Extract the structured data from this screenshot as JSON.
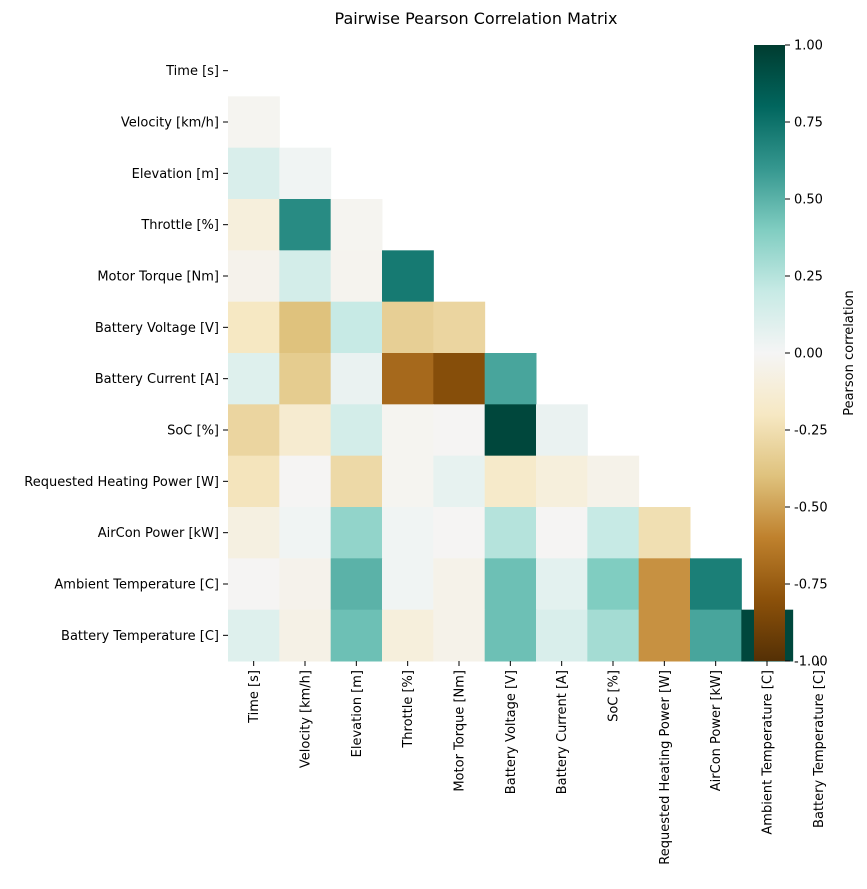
{
  "chart_data": {
    "type": "heatmap",
    "title": "Pairwise Pearson Correlation Matrix",
    "variables": [
      "Time [s]",
      "Velocity [km/h]",
      "Elevation [m]",
      "Throttle [%]",
      "Motor Torque [Nm]",
      "Battery Voltage [V]",
      "Battery Current [A]",
      "SoC [%]",
      "Requested Heating Power [W]",
      "AirCon Power [kW]",
      "Ambient Temperature [C]",
      "Battery Temperature [C]"
    ],
    "mask": "upper triangle including diagonal",
    "values": [
      [],
      [
        -0.02
      ],
      [
        0.12,
        0.02
      ],
      [
        -0.1,
        0.65,
        -0.02
      ],
      [
        -0.04,
        0.15,
        -0.03,
        0.72
      ],
      [
        -0.2,
        -0.4,
        0.2,
        -0.33,
        -0.3
      ],
      [
        0.1,
        -0.35,
        0.05,
        -0.7,
        -0.82,
        0.55
      ],
      [
        -0.3,
        -0.15,
        0.15,
        -0.02,
        -0.01,
        0.95,
        0.05
      ],
      [
        -0.22,
        -0.01,
        -0.28,
        -0.02,
        0.06,
        -0.17,
        -0.1,
        -0.05
      ],
      [
        -0.08,
        0.02,
        0.35,
        0.02,
        -0.01,
        0.25,
        -0.01,
        0.2,
        -0.25
      ],
      [
        -0.01,
        -0.04,
        0.5,
        0.02,
        -0.05,
        0.45,
        0.08,
        0.4,
        -0.55,
        0.7
      ],
      [
        0.1,
        -0.06,
        0.45,
        -0.1,
        -0.05,
        0.45,
        0.12,
        0.3,
        -0.55,
        0.55,
        0.95
      ]
    ],
    "colorbar": {
      "label": "Pearson correlation",
      "vmin": -1.0,
      "vmax": 1.0,
      "ticks": [
        "-1.00",
        "-0.75",
        "-0.50",
        "-0.25",
        "0.00",
        "0.25",
        "0.50",
        "0.75",
        "1.00"
      ],
      "colormap": "BrBG",
      "colors": [
        "#543005",
        "#8c510a",
        "#bf812d",
        "#dfc27d",
        "#f6e8c3",
        "#f5f5f5",
        "#c7eae5",
        "#80cdc1",
        "#35978f",
        "#01665e",
        "#003c30"
      ]
    }
  }
}
